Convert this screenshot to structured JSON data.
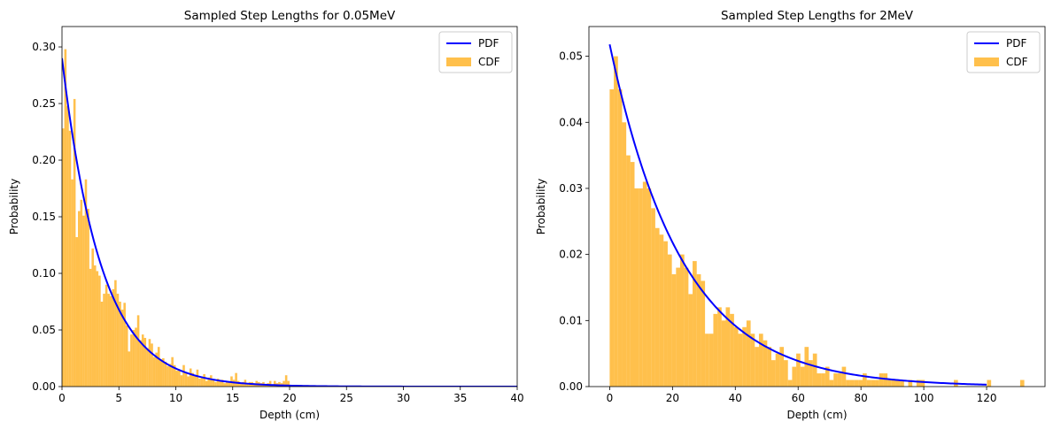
{
  "chart_data": [
    {
      "type": "histogram+line",
      "title": "Sampled Step Lengths for 0.05MeV",
      "xlabel": "Depth (cm)",
      "ylabel": "Probability",
      "xlim": [
        0,
        40
      ],
      "ylim": [
        0,
        0.318
      ],
      "xticks": [
        0,
        5,
        10,
        15,
        20,
        25,
        30,
        35,
        40
      ],
      "yticks": [
        0.0,
        0.05,
        0.1,
        0.15,
        0.2,
        0.25,
        0.3
      ],
      "ytick_labels": [
        "0.00",
        "0.05",
        "0.10",
        "0.15",
        "0.20",
        "0.25",
        "0.30"
      ],
      "legend_position": "top-right",
      "legend": [
        {
          "label": "PDF",
          "kind": "line",
          "color": "#0000ff"
        },
        {
          "label": "CDF",
          "kind": "patch",
          "color": "#ffa500"
        }
      ],
      "pdf": {
        "name": "PDF",
        "amplitude": 0.29,
        "rate": 0.29,
        "x_range": [
          0,
          40
        ]
      },
      "histogram": {
        "name": "CDF",
        "bin_start": 0,
        "bin_width": 0.2,
        "values": [
          0.228,
          0.298,
          0.248,
          0.226,
          0.183,
          0.254,
          0.132,
          0.155,
          0.165,
          0.151,
          0.183,
          0.157,
          0.104,
          0.122,
          0.107,
          0.102,
          0.098,
          0.075,
          0.082,
          0.09,
          0.082,
          0.08,
          0.086,
          0.094,
          0.082,
          0.075,
          0.068,
          0.074,
          0.054,
          0.031,
          0.046,
          0.05,
          0.052,
          0.063,
          0.041,
          0.046,
          0.043,
          0.034,
          0.042,
          0.038,
          0.026,
          0.03,
          0.035,
          0.024,
          0.025,
          0.022,
          0.018,
          0.02,
          0.026,
          0.019,
          0.014,
          0.015,
          0.01,
          0.019,
          0.012,
          0.009,
          0.016,
          0.012,
          0.01,
          0.015,
          0.007,
          0.009,
          0.011,
          0.005,
          0.008,
          0.01,
          0.006,
          0.004,
          0.007,
          0.005,
          0.006,
          0.003,
          0.005,
          0.004,
          0.009,
          0.006,
          0.012,
          0.005,
          0.003,
          0.004,
          0.006,
          0.002,
          0.004,
          0.004,
          0.003,
          0.005,
          0.004,
          0.003,
          0.004,
          0.002,
          0.003,
          0.005,
          0.002,
          0.005,
          0.003,
          0.004,
          0.003,
          0.005,
          0.01,
          0.005
        ]
      }
    },
    {
      "type": "histogram+line",
      "title": "Sampled Step Lengths for 2MeV",
      "xlabel": "Depth (cm)",
      "ylabel": "Probability",
      "xlim": [
        -6.6,
        138.6
      ],
      "ylim": [
        0,
        0.0545
      ],
      "xticks": [
        0,
        20,
        40,
        60,
        80,
        100,
        120
      ],
      "yticks": [
        0.0,
        0.01,
        0.02,
        0.03,
        0.04,
        0.05
      ],
      "ytick_labels": [
        "0.00",
        "0.01",
        "0.02",
        "0.03",
        "0.04",
        "0.05"
      ],
      "legend_position": "top-right",
      "legend": [
        {
          "label": "PDF",
          "kind": "line",
          "color": "#0000ff"
        },
        {
          "label": "CDF",
          "kind": "patch",
          "color": "#ffa500"
        }
      ],
      "pdf": {
        "name": "PDF",
        "amplitude": 0.0518,
        "rate": 0.0432,
        "x_range": [
          0,
          120
        ]
      },
      "histogram": {
        "name": "CDF",
        "bin_start": 0,
        "bin_width": 1.32,
        "values": [
          0.045,
          0.05,
          0.045,
          0.04,
          0.035,
          0.034,
          0.03,
          0.03,
          0.031,
          0.03,
          0.027,
          0.024,
          0.023,
          0.022,
          0.02,
          0.017,
          0.018,
          0.02,
          0.018,
          0.014,
          0.019,
          0.017,
          0.016,
          0.008,
          0.008,
          0.011,
          0.012,
          0.01,
          0.012,
          0.011,
          0.009,
          0.008,
          0.009,
          0.01,
          0.008,
          0.006,
          0.008,
          0.007,
          0.006,
          0.004,
          0.005,
          0.006,
          0.004,
          0.001,
          0.003,
          0.005,
          0.003,
          0.006,
          0.004,
          0.005,
          0.002,
          0.002,
          0.003,
          0.001,
          0.002,
          0.002,
          0.003,
          0.001,
          0.001,
          0.001,
          0.001,
          0.002,
          0.001,
          0.001,
          0.001,
          0.002,
          0.002,
          0.001,
          0.001,
          0.001,
          0.001,
          0.0,
          0.001,
          0.0,
          0.001,
          0.001,
          0.0,
          0.0,
          0.0,
          0.0,
          0.0,
          0.0,
          0.0,
          0.001,
          0.0,
          0.0,
          0.0,
          0.0,
          0.0,
          0.0,
          0.0,
          0.001,
          0.0,
          0.0,
          0.0,
          0.0,
          0.0,
          0.0,
          0.0,
          0.001
        ]
      }
    }
  ]
}
